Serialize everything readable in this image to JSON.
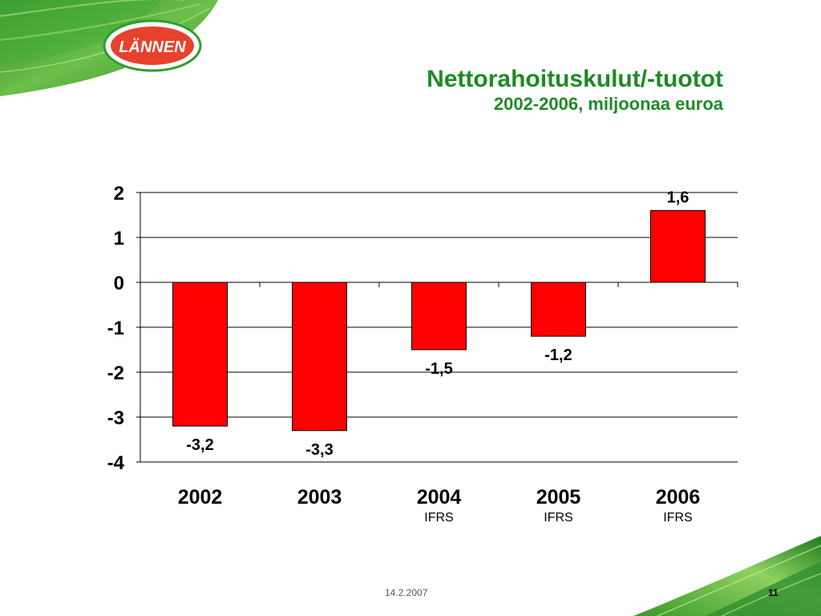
{
  "slide": {
    "title": "Nettorahoituskulut/-tuotot",
    "subtitle": "2002-2006, miljoonaa euroa",
    "date": "14.2.2007",
    "page_number": "11",
    "logo_text": "LÄNNEN"
  },
  "colors": {
    "title": "#1f8a26",
    "bar": "#ff0000",
    "logo_red": "#e8412c",
    "logo_green": "#2e9e2e"
  },
  "chart_data": {
    "type": "bar",
    "categories": [
      "2002",
      "2003",
      "2004",
      "2005",
      "2006"
    ],
    "sublabels": [
      "",
      "",
      "IFRS",
      "IFRS",
      "IFRS"
    ],
    "values": [
      -3.2,
      -3.3,
      -1.5,
      -1.2,
      1.6
    ],
    "value_labels": [
      "-3,2",
      "-3,3",
      "-1,5",
      "-1,2",
      "1,6"
    ],
    "yticks": [
      2,
      1,
      0,
      -1,
      -2,
      -3,
      -4
    ],
    "ylim": [
      -4,
      2
    ],
    "grid": true,
    "legend": "none"
  }
}
